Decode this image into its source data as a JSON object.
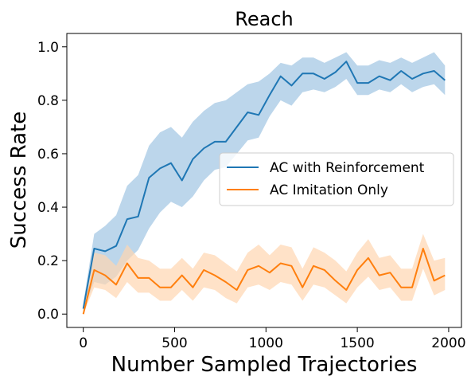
{
  "chart_data": {
    "type": "line",
    "title": "Reach",
    "xlabel": "Number Sampled Trajectories",
    "ylabel": "Success Rate",
    "xlim": [
      -90,
      2070
    ],
    "ylim": [
      -0.05,
      1.05
    ],
    "xticks": [
      0,
      500,
      1000,
      1500,
      2000
    ],
    "yticks": [
      0.0,
      0.2,
      0.4,
      0.6,
      0.8,
      1.0
    ],
    "ytick_labels": [
      "0.0",
      "0.2",
      "0.4",
      "0.6",
      "0.8",
      "1.0"
    ],
    "grid": false,
    "legend_position": "center-right",
    "series": [
      {
        "name": "AC with Reinforcement",
        "color": "#1f77b4",
        "band_color": "#a6c8e4",
        "x": [
          0,
          60,
          120,
          180,
          240,
          300,
          360,
          420,
          480,
          540,
          600,
          660,
          720,
          780,
          840,
          900,
          960,
          1020,
          1080,
          1140,
          1200,
          1260,
          1320,
          1380,
          1440,
          1500,
          1560,
          1620,
          1680,
          1740,
          1800,
          1860,
          1920,
          1980
        ],
        "values": [
          0.02,
          0.245,
          0.235,
          0.255,
          0.355,
          0.365,
          0.51,
          0.545,
          0.565,
          0.5,
          0.58,
          0.62,
          0.645,
          0.645,
          0.7,
          0.755,
          0.745,
          0.82,
          0.89,
          0.855,
          0.9,
          0.9,
          0.88,
          0.905,
          0.945,
          0.865,
          0.865,
          0.89,
          0.875,
          0.91,
          0.88,
          0.9,
          0.91,
          0.875
        ],
        "lower": [
          0.01,
          0.12,
          0.11,
          0.14,
          0.2,
          0.24,
          0.32,
          0.38,
          0.42,
          0.4,
          0.44,
          0.5,
          0.54,
          0.55,
          0.6,
          0.65,
          0.66,
          0.74,
          0.8,
          0.78,
          0.83,
          0.84,
          0.83,
          0.85,
          0.88,
          0.82,
          0.82,
          0.84,
          0.83,
          0.86,
          0.83,
          0.85,
          0.86,
          0.82
        ],
        "upper": [
          0.04,
          0.3,
          0.33,
          0.37,
          0.48,
          0.52,
          0.63,
          0.68,
          0.7,
          0.66,
          0.72,
          0.76,
          0.79,
          0.8,
          0.83,
          0.86,
          0.87,
          0.9,
          0.94,
          0.93,
          0.96,
          0.96,
          0.94,
          0.96,
          0.98,
          0.93,
          0.93,
          0.95,
          0.94,
          0.96,
          0.94,
          0.96,
          0.98,
          0.93
        ]
      },
      {
        "name": "AC Imitation Only",
        "color": "#ff7f0e",
        "band_color": "#ffd6b0",
        "x": [
          0,
          60,
          120,
          180,
          240,
          300,
          360,
          420,
          480,
          540,
          600,
          660,
          720,
          780,
          840,
          900,
          960,
          1020,
          1080,
          1140,
          1200,
          1260,
          1320,
          1380,
          1440,
          1500,
          1560,
          1620,
          1680,
          1740,
          1800,
          1860,
          1920,
          1980
        ],
        "values": [
          0.0,
          0.165,
          0.145,
          0.11,
          0.19,
          0.135,
          0.135,
          0.1,
          0.1,
          0.145,
          0.1,
          0.165,
          0.145,
          0.12,
          0.09,
          0.165,
          0.18,
          0.155,
          0.19,
          0.18,
          0.1,
          0.18,
          0.165,
          0.125,
          0.09,
          0.165,
          0.21,
          0.145,
          0.155,
          0.1,
          0.1,
          0.245,
          0.125,
          0.145
        ],
        "lower": [
          0.0,
          0.1,
          0.09,
          0.06,
          0.12,
          0.08,
          0.08,
          0.05,
          0.05,
          0.09,
          0.05,
          0.1,
          0.09,
          0.06,
          0.04,
          0.1,
          0.11,
          0.09,
          0.12,
          0.11,
          0.05,
          0.11,
          0.1,
          0.07,
          0.04,
          0.1,
          0.14,
          0.09,
          0.1,
          0.05,
          0.05,
          0.17,
          0.07,
          0.09
        ],
        "upper": [
          0.01,
          0.23,
          0.22,
          0.18,
          0.26,
          0.21,
          0.2,
          0.17,
          0.17,
          0.21,
          0.17,
          0.23,
          0.22,
          0.19,
          0.16,
          0.23,
          0.26,
          0.22,
          0.26,
          0.25,
          0.17,
          0.25,
          0.23,
          0.2,
          0.16,
          0.23,
          0.28,
          0.21,
          0.22,
          0.17,
          0.17,
          0.3,
          0.2,
          0.21
        ]
      }
    ]
  }
}
